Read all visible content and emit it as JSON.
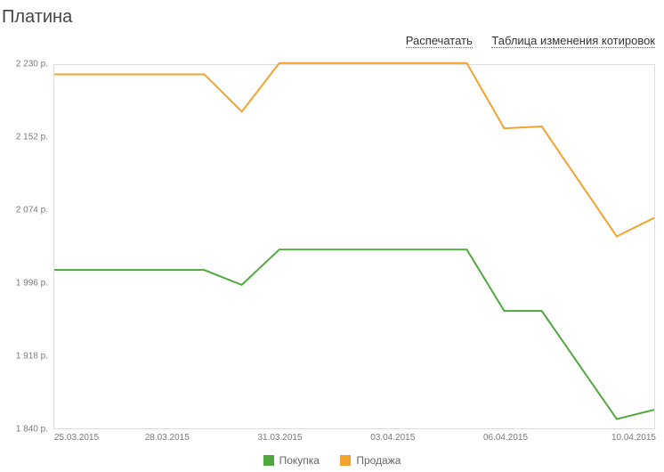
{
  "title": "Платина",
  "actions": {
    "print": "Распечатать",
    "table": "Таблица изменения котировок"
  },
  "chart": {
    "type": "line",
    "background_color": "#ffffff",
    "border_color": "#dddddd",
    "label_color": "#7a7a7a",
    "label_fontsize": 10,
    "y": {
      "min": 1840,
      "max": 2230,
      "ticks": [
        2230,
        2152,
        2074,
        1996,
        1918,
        1840
      ],
      "tick_labels": [
        "2 230 р.",
        "2 152 р.",
        "2 074 р.",
        "1 996 р.",
        "1 918 р.",
        "1 840 р."
      ]
    },
    "x": {
      "min": 0,
      "max": 16,
      "ticks": [
        0,
        3,
        6,
        9,
        12,
        16
      ],
      "tick_labels": [
        "25.03.2015",
        "28.03.2015",
        "31.03.2015",
        "03.04.2015",
        "06.04.2015",
        "10.04.2015"
      ]
    },
    "series": [
      {
        "name": "Покупка",
        "color": "#4fa83d",
        "line_width": 2,
        "x": [
          0,
          4,
          5,
          6,
          11,
          12,
          13,
          15,
          16
        ],
        "y": [
          2010,
          2010,
          1994,
          2032,
          2032,
          1966,
          1966,
          1850,
          1860
        ]
      },
      {
        "name": "Продажа",
        "color": "#f1a32e",
        "line_width": 2,
        "x": [
          0,
          4,
          5,
          6,
          11,
          12,
          13,
          15,
          16
        ],
        "y": [
          2220,
          2220,
          2180,
          2232,
          2232,
          2162,
          2164,
          2046,
          2066
        ]
      }
    ]
  },
  "legend": {
    "buy": "Покупка",
    "sell": "Продажа"
  }
}
